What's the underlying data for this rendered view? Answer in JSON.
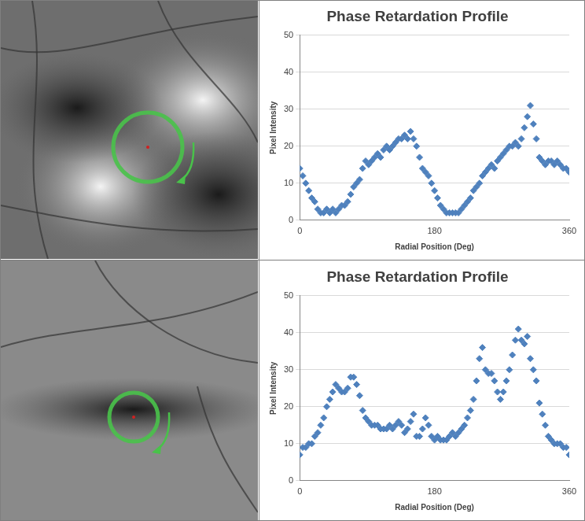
{
  "chart_data": [
    {
      "type": "scatter",
      "title": "Phase Retardation Profile",
      "x_label": "Radial Position (Deg)",
      "y_label": "Pixel Intensity",
      "color": "#4f81bd",
      "marker": "diamond",
      "grid": true,
      "xlim": [
        0,
        360
      ],
      "xticks": [
        0,
        180,
        360
      ],
      "ylim": [
        0,
        50
      ],
      "yticks": [
        0,
        10,
        20,
        30,
        40,
        50
      ],
      "x": [
        0,
        4,
        8,
        12,
        16,
        20,
        24,
        28,
        32,
        36,
        40,
        44,
        48,
        52,
        56,
        60,
        64,
        68,
        72,
        76,
        80,
        84,
        88,
        92,
        96,
        100,
        104,
        108,
        112,
        116,
        120,
        124,
        128,
        132,
        136,
        140,
        144,
        148,
        152,
        156,
        160,
        164,
        168,
        172,
        176,
        180,
        184,
        188,
        192,
        196,
        200,
        204,
        208,
        212,
        216,
        220,
        224,
        228,
        232,
        236,
        240,
        244,
        248,
        252,
        256,
        260,
        264,
        268,
        272,
        276,
        280,
        284,
        288,
        292,
        296,
        300,
        304,
        308,
        312,
        316,
        320,
        324,
        328,
        332,
        336,
        340,
        344,
        348,
        352,
        356,
        360
      ],
      "values": [
        14,
        12,
        10,
        8,
        6,
        5,
        3,
        2,
        2,
        3,
        2,
        3,
        2,
        3,
        4,
        4,
        5,
        7,
        9,
        10,
        11,
        14,
        16,
        15,
        16,
        17,
        18,
        17,
        19,
        20,
        19,
        20,
        21,
        22,
        22,
        23,
        22,
        24,
        22,
        20,
        17,
        14,
        13,
        12,
        10,
        8,
        6,
        4,
        3,
        2,
        2,
        2,
        2,
        2,
        3,
        4,
        5,
        6,
        8,
        9,
        10,
        12,
        13,
        14,
        15,
        14,
        16,
        17,
        18,
        19,
        20,
        20,
        21,
        20,
        22,
        25,
        28,
        31,
        26,
        22,
        17,
        16,
        15,
        16,
        16,
        15,
        16,
        15,
        14,
        14,
        13
      ]
    },
    {
      "type": "scatter",
      "title": "Phase Retardation Profile",
      "x_label": "Radial Position (Deg)",
      "y_label": "Pixel Intensity",
      "color": "#4f81bd",
      "marker": "diamond",
      "grid": true,
      "xlim": [
        0,
        360
      ],
      "xticks": [
        0,
        180,
        360
      ],
      "ylim": [
        0,
        50
      ],
      "yticks": [
        0,
        10,
        20,
        30,
        40,
        50
      ],
      "x": [
        0,
        4,
        8,
        12,
        16,
        20,
        24,
        28,
        32,
        36,
        40,
        44,
        48,
        52,
        56,
        60,
        64,
        68,
        72,
        76,
        80,
        84,
        88,
        92,
        96,
        100,
        104,
        108,
        112,
        116,
        120,
        124,
        128,
        132,
        136,
        140,
        144,
        148,
        152,
        156,
        160,
        164,
        168,
        172,
        176,
        180,
        184,
        188,
        192,
        196,
        200,
        204,
        208,
        212,
        216,
        220,
        224,
        228,
        232,
        236,
        240,
        244,
        248,
        252,
        256,
        260,
        264,
        268,
        272,
        276,
        280,
        284,
        288,
        292,
        296,
        300,
        304,
        308,
        312,
        316,
        320,
        324,
        328,
        332,
        336,
        340,
        344,
        348,
        352,
        356,
        360
      ],
      "values": [
        7,
        9,
        9,
        10,
        10,
        12,
        13,
        15,
        17,
        20,
        22,
        24,
        26,
        25,
        24,
        24,
        25,
        28,
        28,
        26,
        23,
        19,
        17,
        16,
        15,
        15,
        15,
        14,
        14,
        14,
        15,
        14,
        15,
        16,
        15,
        13,
        14,
        16,
        18,
        12,
        12,
        14,
        17,
        15,
        12,
        11,
        12,
        11,
        11,
        11,
        12,
        13,
        12,
        13,
        14,
        15,
        17,
        19,
        22,
        27,
        33,
        36,
        30,
        29,
        29,
        27,
        24,
        22,
        24,
        27,
        30,
        34,
        38,
        41,
        38,
        37,
        39,
        33,
        30,
        27,
        21,
        18,
        15,
        12,
        11,
        10,
        10,
        10,
        9,
        9,
        7
      ]
    }
  ]
}
